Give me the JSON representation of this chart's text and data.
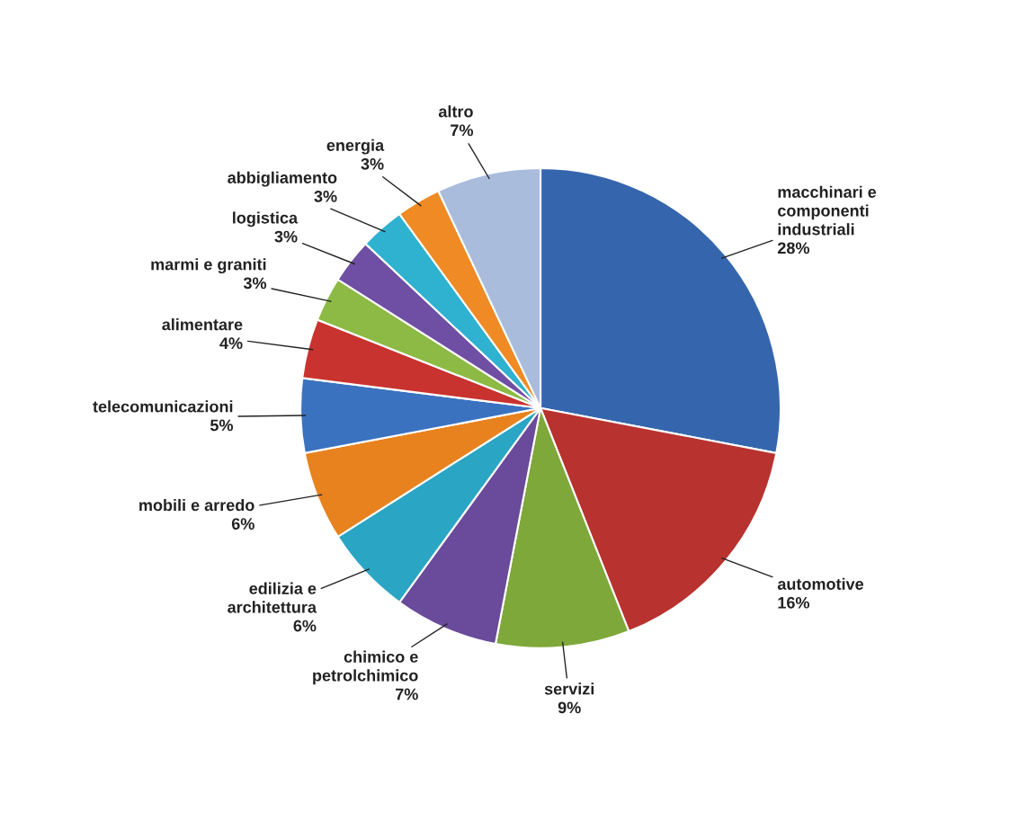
{
  "chart_data": {
    "type": "pie",
    "categories": [
      "macchinari e\ncomponenti\nindustriali",
      "automotive",
      "servizi",
      "chimico e\npetrolchimico",
      "edilizia e\narchitettura",
      "mobili e arredo",
      "telecomunicazioni",
      "alimentare",
      "marmi e graniti",
      "logistica",
      "abbigliamento",
      "energia",
      "altro"
    ],
    "values": [
      28,
      16,
      9,
      7,
      6,
      6,
      5,
      4,
      3,
      3,
      3,
      3,
      7
    ],
    "value_labels": [
      "28%",
      "16%",
      "9%",
      "7%",
      "6%",
      "6%",
      "5%",
      "4%",
      "3%",
      "3%",
      "3%",
      "3%",
      "7%"
    ],
    "colors": [
      "#3566ad",
      "#b8322f",
      "#7ea83a",
      "#6a4a9a",
      "#2ba5c4",
      "#e8821f",
      "#3a72c0",
      "#c8332f",
      "#8cba45",
      "#6f4fa3",
      "#2fb1d0",
      "#f08a24",
      "#a9bcdc"
    ]
  }
}
